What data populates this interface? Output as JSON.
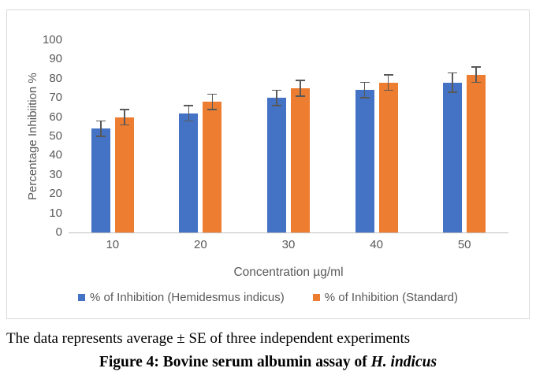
{
  "chart_data": {
    "type": "bar",
    "title": "",
    "categories": [
      "10",
      "20",
      "30",
      "40",
      "50"
    ],
    "series": [
      {
        "name": "% of Inhibition (Hemidesmus indicus)",
        "color": "#4472C4",
        "values": [
          54,
          62,
          70,
          74,
          78
        ],
        "errors": [
          4,
          4,
          4,
          4,
          5
        ]
      },
      {
        "name": "% of Inhibition (Standard)",
        "color": "#ED7D31",
        "values": [
          60,
          68,
          75,
          78,
          82
        ],
        "errors": [
          4,
          4,
          4,
          4,
          4
        ]
      }
    ],
    "xlabel": "Concentration µg/ml",
    "ylabel": "Percentage Inhibiition %",
    "ylim": [
      0,
      100
    ],
    "ytick_step": 10,
    "grid": false,
    "error_bars": true,
    "legend_position": "bottom"
  },
  "caption": {
    "note": "The data represents average ± SE of three independent experiments",
    "figure_bold": "Figure 4: Bovine serum albumin assay of",
    "figure_species": "H. indicus"
  },
  "colors": {
    "series_blue": "#4472C4",
    "series_orange": "#ED7D31",
    "axis_text": "#595959",
    "axis_line": "#BFBFBF",
    "chart_border": "#D9D9D9",
    "error_bar": "#595959"
  }
}
